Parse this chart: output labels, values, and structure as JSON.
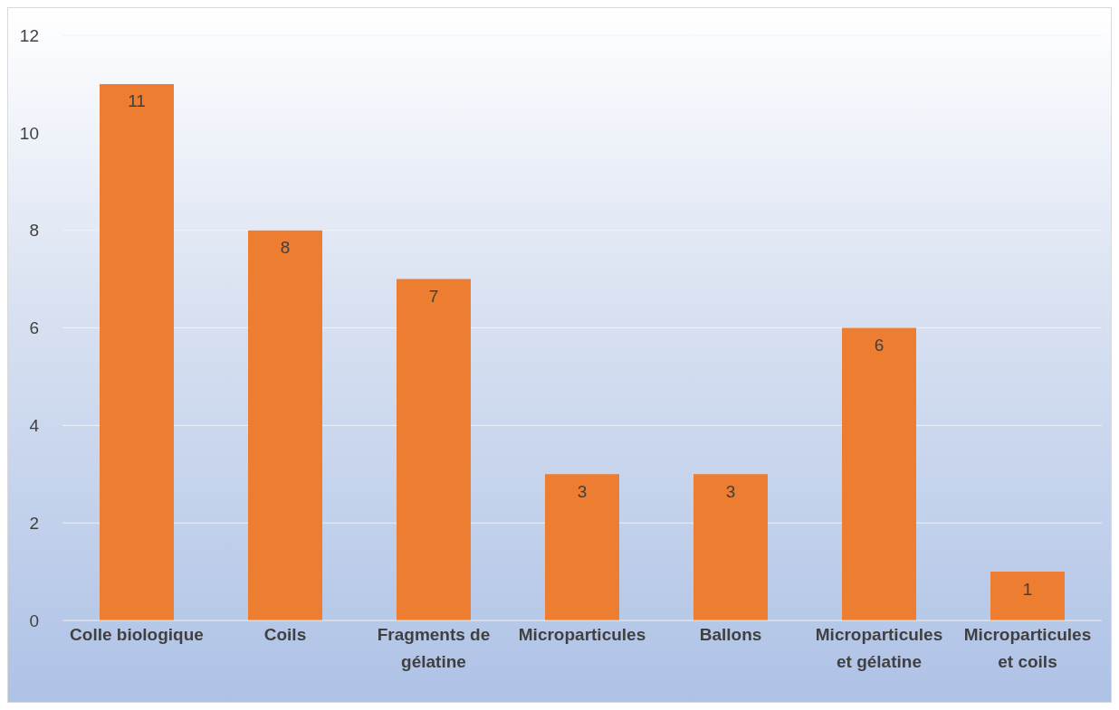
{
  "chart_data": {
    "type": "bar",
    "categories": [
      "Colle biologique",
      "Coils",
      "Fragments de gélatine",
      "Microparticules",
      "Ballons",
      "Microparticules et gélatine",
      "Microparticules et coils"
    ],
    "values": [
      11,
      8,
      7,
      3,
      3,
      6,
      1
    ],
    "color": "#ed7d31",
    "ylim": [
      0,
      12
    ],
    "yticks": [
      0,
      2,
      4,
      6,
      8,
      10,
      12
    ],
    "grid": "y",
    "data_labels": true
  }
}
